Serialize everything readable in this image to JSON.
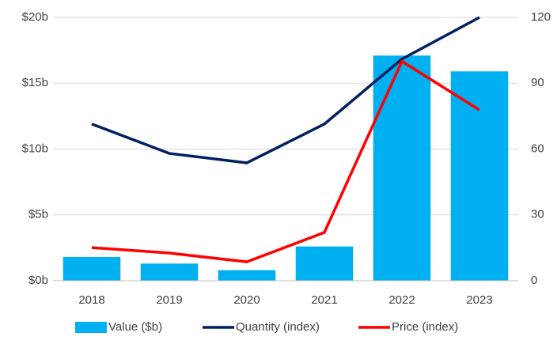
{
  "chart_data": {
    "type": "bar_line",
    "categories": [
      "2018",
      "2019",
      "2020",
      "2021",
      "2022",
      "2023"
    ],
    "series": [
      {
        "name": "Value ($b)",
        "type": "bar",
        "color": "#00b0f0",
        "values": [
          1.8,
          1.3,
          0.8,
          2.6,
          17.1,
          15.9
        ]
      },
      {
        "name": "Quantity (index)",
        "type": "line",
        "axis": "y2",
        "color": "#002060",
        "values": [
          71.4,
          58,
          53.7,
          71.4,
          101,
          120
        ]
      },
      {
        "name": "Price (index)",
        "type": "line",
        "axis": "y2",
        "color": "#ff0000",
        "values": [
          15.1,
          12.6,
          8.6,
          22,
          100,
          77.8
        ]
      }
    ],
    "ylim": [
      0,
      20
    ],
    "yticks": [
      {
        "value": 0,
        "label": "$0b"
      },
      {
        "value": 5,
        "label": "$5b"
      },
      {
        "value": 10,
        "label": "$10b"
      },
      {
        "value": 15,
        "label": "$15b"
      },
      {
        "value": 20,
        "label": "$20b"
      }
    ],
    "y2lim": [
      0,
      120
    ],
    "y2ticks": [
      0,
      30,
      60,
      90,
      120
    ],
    "grid": true,
    "legend": "bottom"
  }
}
